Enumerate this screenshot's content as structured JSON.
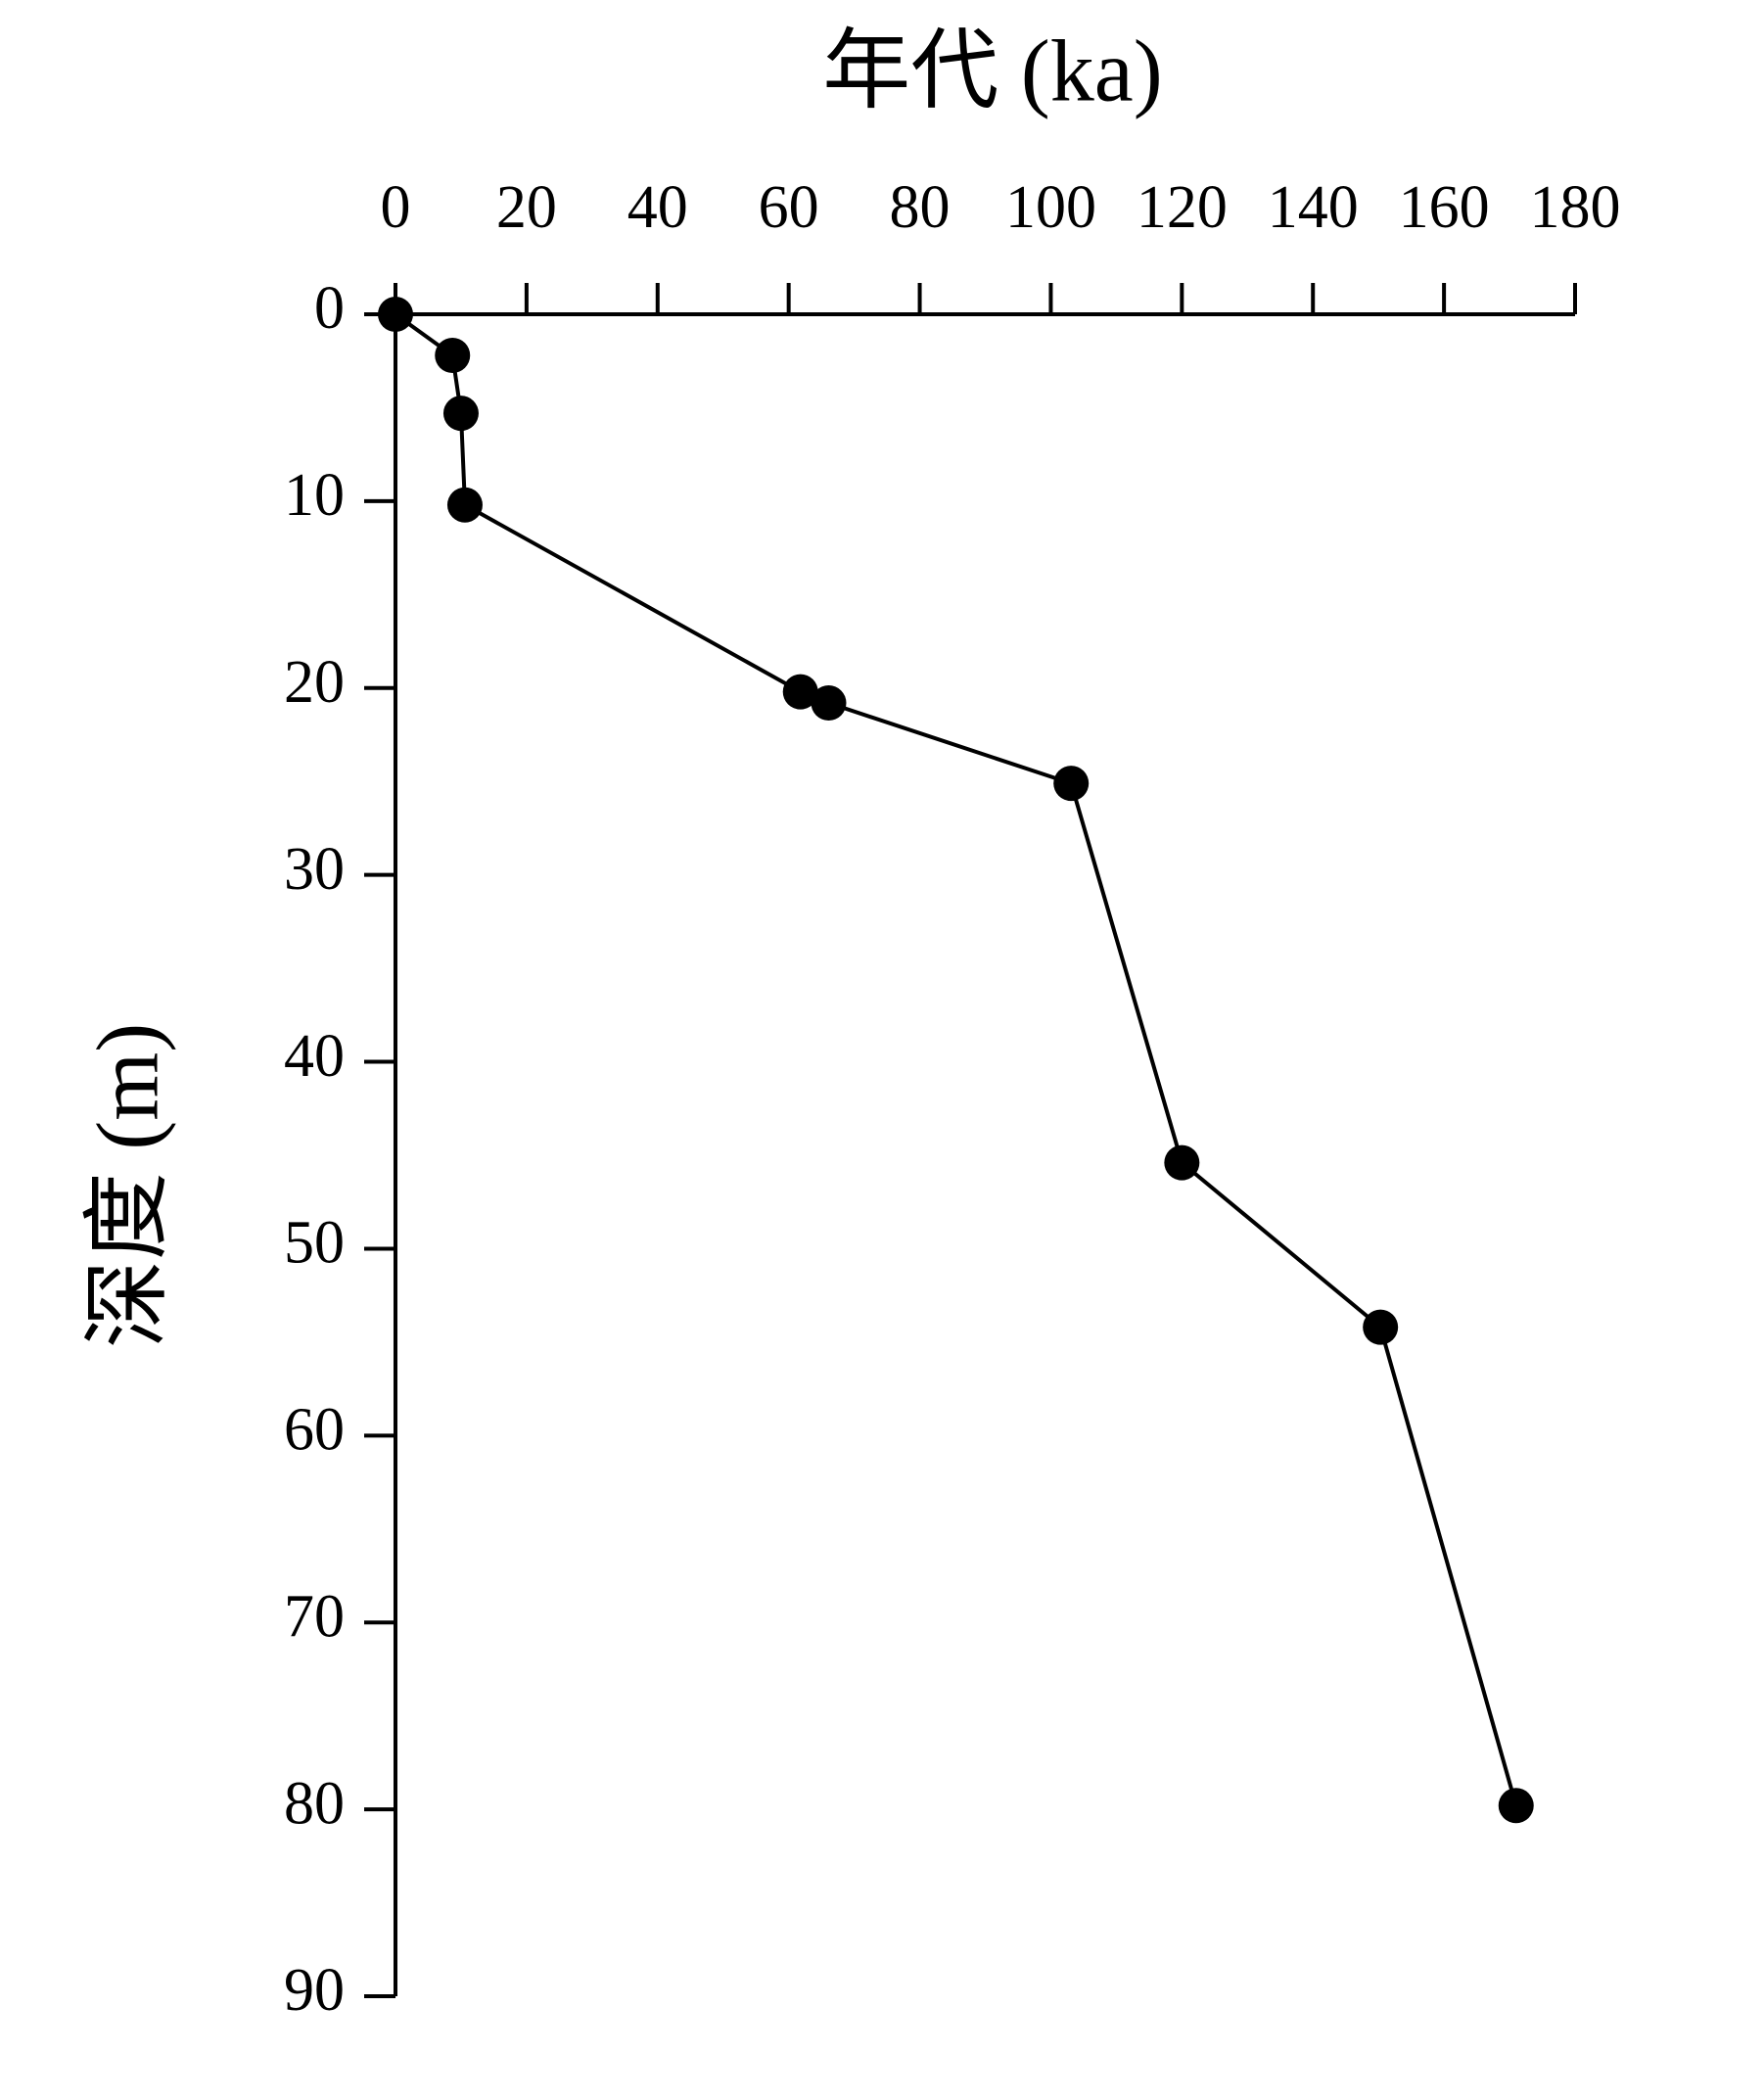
{
  "chart_data": {
    "type": "line",
    "x_label": "年代 (ka)",
    "y_label": "深度 (m)",
    "x": [
      0,
      8.7,
      10,
      10.6,
      61.8,
      66.1,
      103.1,
      120,
      150.3,
      171
    ],
    "series": [
      {
        "color": "#000000",
        "values": [
          0,
          2.2,
          5.3,
          10.2,
          20.2,
          20.8,
          25.1,
          45.4,
          54.2,
          79.8
        ]
      }
    ],
    "xlim": [
      0,
      180
    ],
    "xticks": [
      0,
      20,
      40,
      60,
      80,
      100,
      120,
      140,
      160,
      180
    ],
    "ylim": [
      0,
      90
    ],
    "yticks": [
      0,
      10,
      20,
      30,
      40,
      50,
      60,
      70,
      80,
      90
    ],
    "y_inverted": true,
    "x_axis_top": true,
    "grid": false
  }
}
